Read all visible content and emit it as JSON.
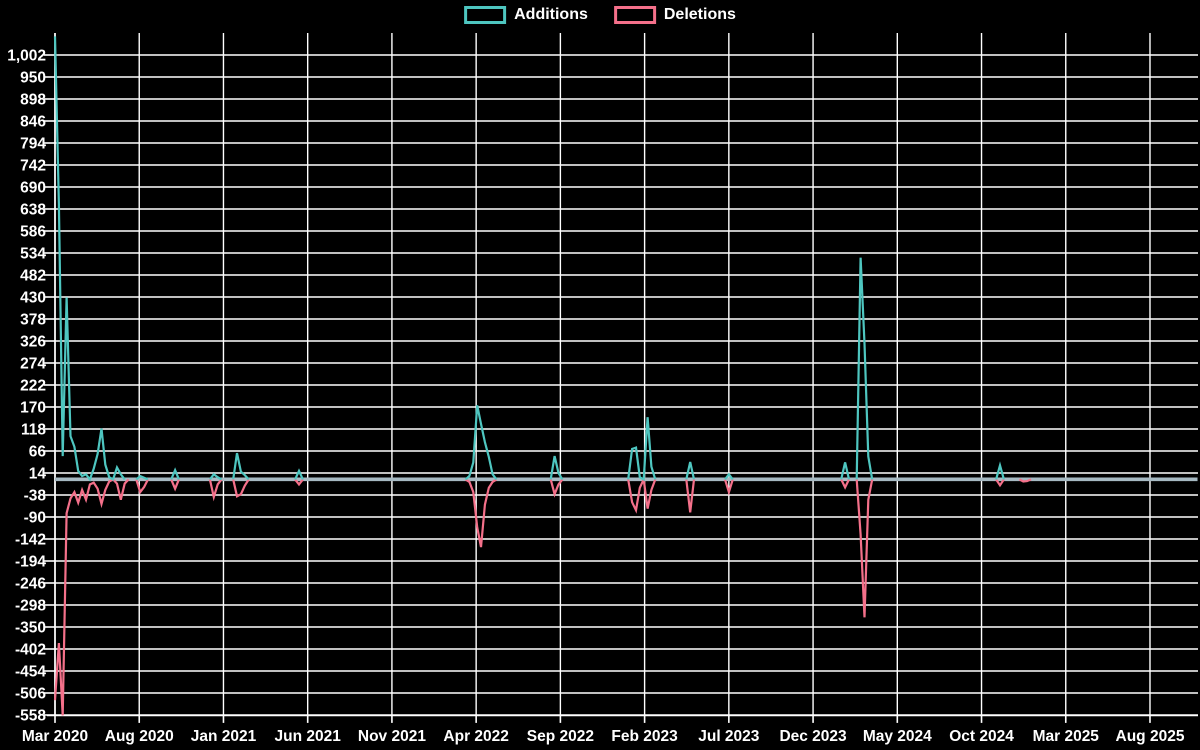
{
  "legend": {
    "additions_label": "Additions",
    "deletions_label": "Deletions"
  },
  "colors": {
    "background": "#000000",
    "grid": "#FFFFFF",
    "axis": "#FFFFFF",
    "text": "#FFFFFF",
    "additions": "#4EC6C0",
    "deletions": "#F4708A",
    "zero_line": "#A6B9C2"
  },
  "chart_data": {
    "type": "line",
    "title": "",
    "legend_position": "top-center",
    "grid": true,
    "series_names": [
      "Additions",
      "Deletions"
    ],
    "x_axis": {
      "tick_labels": [
        "Mar 2020",
        "Aug 2020",
        "Jan 2021",
        "Jun 2021",
        "Nov 2021",
        "Apr 2022",
        "Sep 2022",
        "Feb 2023",
        "Jul 2023",
        "Dec 2023",
        "May 2024",
        "Oct 2024",
        "Mar 2025",
        "Aug 2025"
      ],
      "tick_interval_months": 5,
      "frequency": "weekly",
      "start_label": "Mar 2020",
      "weeks_total": 296
    },
    "y_axis": {
      "tick_labels": [
        "1,002",
        "950",
        "898",
        "846",
        "794",
        "742",
        "690",
        "638",
        "586",
        "534",
        "482",
        "430",
        "378",
        "326",
        "274",
        "222",
        "170",
        "118",
        "66",
        "14",
        "-38",
        "-90",
        "-142",
        "-194",
        "-246",
        "-298",
        "-350",
        "-402",
        "-454",
        "-506",
        "-558"
      ],
      "top_tick": 1002,
      "bottom_tick": -558,
      "step": 52
    },
    "baseline": 0,
    "events_note": "Sparse weekly data; weeks not listed have additions 0 and deletions 0.",
    "events": [
      {
        "week": 0,
        "additions": 1047,
        "deletions": -522
      },
      {
        "week": 1,
        "additions": 650,
        "deletions": -387
      },
      {
        "week": 2,
        "additions": 55,
        "deletions": -558
      },
      {
        "week": 3,
        "additions": 430,
        "deletions": -80
      },
      {
        "week": 4,
        "additions": 102,
        "deletions": -45
      },
      {
        "week": 5,
        "additions": 77,
        "deletions": -30
      },
      {
        "week": 6,
        "additions": 20,
        "deletions": -55
      },
      {
        "week": 7,
        "additions": 8,
        "deletions": -25
      },
      {
        "week": 8,
        "additions": 12,
        "deletions": -48
      },
      {
        "week": 9,
        "additions": 0,
        "deletions": -12
      },
      {
        "week": 10,
        "additions": 25,
        "deletions": -8
      },
      {
        "week": 11,
        "additions": 60,
        "deletions": -22
      },
      {
        "week": 12,
        "additions": 120,
        "deletions": -58
      },
      {
        "week": 13,
        "additions": 35,
        "deletions": -25
      },
      {
        "week": 14,
        "additions": 5,
        "deletions": -5
      },
      {
        "week": 16,
        "additions": 28,
        "deletions": -10
      },
      {
        "week": 17,
        "additions": 12,
        "deletions": -48
      },
      {
        "week": 18,
        "additions": 0,
        "deletions": -10
      },
      {
        "week": 22,
        "additions": 8,
        "deletions": -30
      },
      {
        "week": 23,
        "additions": 4,
        "deletions": -18
      },
      {
        "week": 31,
        "additions": 22,
        "deletions": -22
      },
      {
        "week": 41,
        "additions": 12,
        "deletions": -42
      },
      {
        "week": 42,
        "additions": 5,
        "deletions": -12
      },
      {
        "week": 47,
        "additions": 62,
        "deletions": -40
      },
      {
        "week": 48,
        "additions": 18,
        "deletions": -35
      },
      {
        "week": 49,
        "additions": 10,
        "deletions": -15
      },
      {
        "week": 63,
        "additions": 20,
        "deletions": -12
      },
      {
        "week": 107,
        "additions": 8,
        "deletions": -6
      },
      {
        "week": 108,
        "additions": 40,
        "deletions": -30
      },
      {
        "week": 109,
        "additions": 175,
        "deletions": -113
      },
      {
        "week": 110,
        "additions": 131,
        "deletions": -160
      },
      {
        "week": 111,
        "additions": 88,
        "deletions": -60
      },
      {
        "week": 112,
        "additions": 53,
        "deletions": -20
      },
      {
        "week": 113,
        "additions": 12,
        "deletions": -6
      },
      {
        "week": 129,
        "additions": 55,
        "deletions": -35
      },
      {
        "week": 130,
        "additions": 15,
        "deletions": -12
      },
      {
        "week": 149,
        "additions": 72,
        "deletions": -54
      },
      {
        "week": 150,
        "additions": 75,
        "deletions": -73
      },
      {
        "week": 151,
        "additions": 5,
        "deletions": -20
      },
      {
        "week": 153,
        "additions": 147,
        "deletions": -69
      },
      {
        "week": 154,
        "additions": 30,
        "deletions": -25
      },
      {
        "week": 164,
        "additions": 41,
        "deletions": -78
      },
      {
        "week": 174,
        "additions": 12,
        "deletions": -30
      },
      {
        "week": 204,
        "additions": 40,
        "deletions": -19
      },
      {
        "week": 208,
        "additions": 524,
        "deletions": -130
      },
      {
        "week": 209,
        "additions": 321,
        "deletions": -326
      },
      {
        "week": 210,
        "additions": 54,
        "deletions": -48
      },
      {
        "week": 244,
        "additions": 33,
        "deletions": -14
      },
      {
        "week": 250,
        "additions": 0,
        "deletions": -5
      },
      {
        "week": 251,
        "additions": 0,
        "deletions": -4
      }
    ]
  }
}
